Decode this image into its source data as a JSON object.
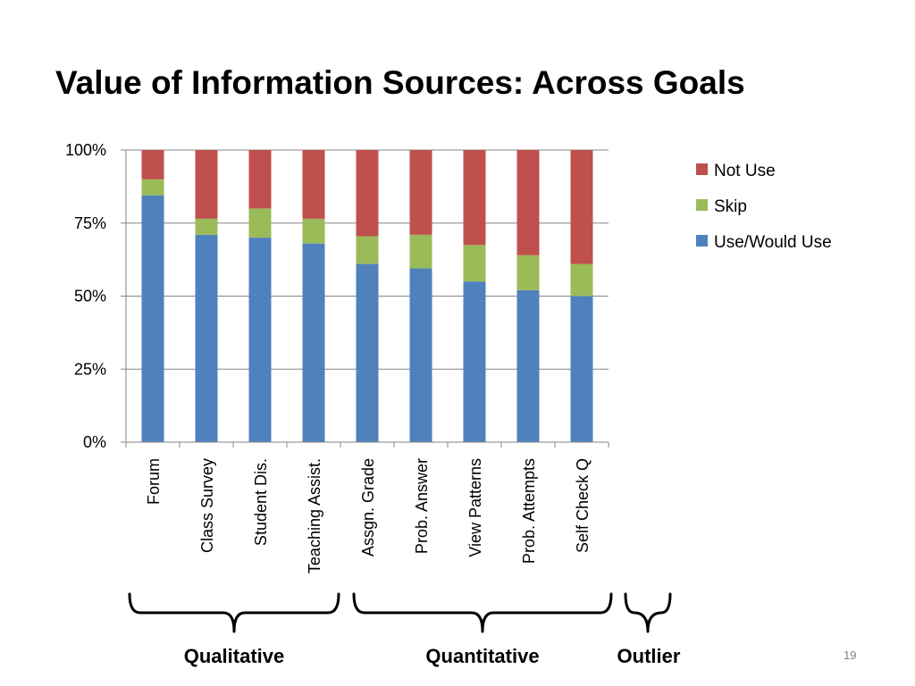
{
  "title": "Value of Information Sources: Across Goals",
  "page_number": "19",
  "colors": {
    "Use/Would Use": "#4F81BD",
    "Skip": "#9BBB59",
    "Not Use": "#C0504D",
    "grid": "#868686"
  },
  "groups": [
    "Qualitative",
    "Quantitative",
    "Outlier"
  ],
  "chart_data": {
    "type": "bar",
    "stacked": true,
    "percent": true,
    "categories": [
      "Forum",
      "Class Survey",
      "Student Dis.",
      "Teaching Assist.",
      "Assgn. Grade",
      "Prob. Answer",
      "View Patterns",
      "Prob. Attempts",
      "Self Check Q"
    ],
    "series": [
      {
        "name": "Use/Would Use",
        "values": [
          84.5,
          71,
          70,
          68,
          61,
          59.5,
          55,
          52,
          50
        ]
      },
      {
        "name": "Skip",
        "values": [
          5.5,
          5.5,
          10,
          8.5,
          9.5,
          11.5,
          12.5,
          12,
          11
        ]
      },
      {
        "name": "Not Use",
        "values": [
          10,
          23.5,
          20,
          23.5,
          29.5,
          29,
          32.5,
          36,
          39
        ]
      }
    ],
    "yticks": [
      "0%",
      "25%",
      "50%",
      "75%",
      "100%"
    ],
    "ylim": [
      0,
      100
    ],
    "grid": true,
    "legend": "right",
    "legend_order": [
      "Not Use",
      "Skip",
      "Use/Would Use"
    ]
  }
}
